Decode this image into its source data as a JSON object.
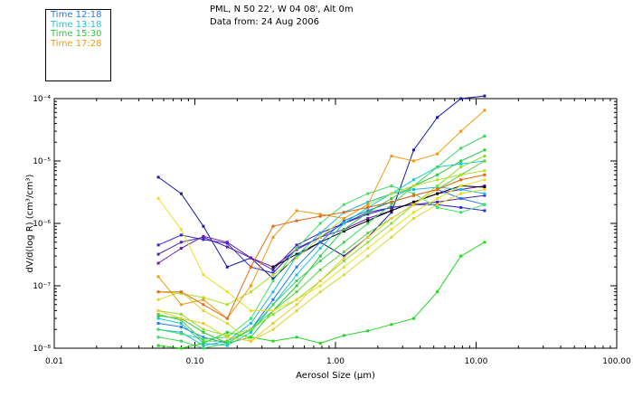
{
  "header": {
    "line1": "PML, N 50 22', W 04 08', Alt 0m",
    "line2": "Data from: 24 Aug 2006"
  },
  "legend": [
    {
      "label": "Time 12:18",
      "color": "#1e7bf0"
    },
    {
      "label": "Time 13:18",
      "color": "#18c8d8"
    },
    {
      "label": "Time 15:30",
      "color": "#2ec83a"
    },
    {
      "label": "Time 17:28",
      "color": "#f09a10"
    }
  ],
  "chart_data": {
    "type": "line",
    "xlabel": "Aerosol Size (μm)",
    "ylabel": "dV/d(log R) (cm³/cm³)",
    "x_scale": "log",
    "y_scale": "log",
    "xlim": [
      0.01,
      100
    ],
    "ylim": [
      1e-08,
      0.0001
    ],
    "x_ticks": [
      {
        "value": 0.01,
        "label": "0.01"
      },
      {
        "value": 0.1,
        "label": "0.10"
      },
      {
        "value": 1,
        "label": "1.00"
      },
      {
        "value": 10,
        "label": "10.00"
      },
      {
        "value": 100,
        "label": "100.00"
      }
    ],
    "y_ticks": [
      {
        "value": 1e-08,
        "label": "10⁻⁸"
      },
      {
        "value": 1e-07,
        "label": "10⁻⁷"
      },
      {
        "value": 1e-06,
        "label": "10⁻⁶"
      },
      {
        "value": 1e-05,
        "label": "10⁻⁵"
      },
      {
        "value": 0.0001,
        "label": "10⁻⁴"
      }
    ],
    "x": [
      0.055,
      0.08,
      0.115,
      0.17,
      0.25,
      0.36,
      0.53,
      0.78,
      1.15,
      1.7,
      2.5,
      3.6,
      5.3,
      7.8,
      11.5
    ],
    "series": [
      {
        "color": "#1a1aa0",
        "values": [
          5.5e-06,
          3e-06,
          9e-07,
          2e-07,
          2.8e-07,
          1.3e-07,
          3e-07,
          5e-07,
          3e-07,
          6e-07,
          1.5e-06,
          1.5e-05,
          5e-05,
          0.0001,
          0.00011
        ]
      },
      {
        "color": "#2a2ad0",
        "values": [
          4.5e-07,
          6.5e-07,
          5.5e-07,
          4.8e-07,
          2e-07,
          1.6e-07,
          4e-07,
          6e-07,
          1e-06,
          1.4e-06,
          1.8e-06,
          2e-06,
          2e-06,
          1.8e-06,
          1.6e-06
        ]
      },
      {
        "color": "#4a20a8",
        "values": [
          3.2e-07,
          5e-07,
          6e-07,
          4.2e-07,
          2.8e-07,
          1.8e-07,
          4.5e-07,
          7e-07,
          1e-06,
          1.5e-06,
          1.8e-06,
          2e-06,
          2.2e-06,
          2.5e-06,
          2.8e-06
        ]
      },
      {
        "color": "#6a18b0",
        "values": [
          2.3e-07,
          4e-07,
          6.2e-07,
          5e-07,
          2.8e-07,
          2e-07,
          3.8e-07,
          6e-07,
          8e-07,
          1.2e-06,
          1.6e-06,
          2.2e-06,
          3e-06,
          3.5e-06,
          4e-06
        ]
      },
      {
        "color": "#000000",
        "values": [
          null,
          null,
          null,
          null,
          null,
          2e-07,
          3.2e-07,
          5e-07,
          7.5e-07,
          1.1e-06,
          1.6e-06,
          2.2e-06,
          3e-06,
          4e-06,
          3.8e-06
        ]
      },
      {
        "color": "#1e7bf0",
        "values": [
          2.5e-08,
          2.2e-08,
          1.5e-08,
          1.2e-08,
          2e-08,
          6e-08,
          2e-07,
          5e-07,
          1.1e-06,
          1.6e-06,
          2.2e-06,
          2.8e-06,
          3.5e-06,
          2.5e-06,
          2e-06
        ]
      },
      {
        "color": "#18c8d8",
        "values": [
          3e-08,
          2.5e-08,
          1.2e-08,
          1.1e-08,
          1.8e-08,
          5e-08,
          1.5e-07,
          4e-07,
          1e-06,
          1.8e-06,
          3e-06,
          5e-06,
          8e-06,
          9e-06,
          1e-05
        ]
      },
      {
        "color": "#20b8e0",
        "values": [
          2e-08,
          1.8e-08,
          1.1e-08,
          1.3e-08,
          2.5e-08,
          8e-08,
          3e-07,
          7e-07,
          1.5e-06,
          2.2e-06,
          3e-06,
          3.5e-06,
          3.8e-06,
          3.5e-06,
          3e-06
        ]
      },
      {
        "color": "#2ec83a",
        "values": [
          3.3e-08,
          3e-08,
          1.8e-08,
          1.2e-08,
          1.5e-08,
          4e-08,
          1e-07,
          3e-07,
          8e-07,
          1.5e-06,
          2.5e-06,
          4e-06,
          6e-06,
          1e-05,
          1.5e-05
        ]
      },
      {
        "color": "#38d858",
        "values": [
          1.5e-08,
          1.3e-08,
          1e-08,
          1.2e-08,
          2e-08,
          5e-08,
          1.2e-07,
          2.5e-07,
          5e-07,
          1e-06,
          2e-06,
          4e-06,
          8e-06,
          1.6e-05,
          2.5e-05
        ]
      },
      {
        "color": "#20d820",
        "values": [
          1.1e-08,
          1e-08,
          1.2e-08,
          1.8e-08,
          1.5e-08,
          1.3e-08,
          1.5e-08,
          1.2e-08,
          1.6e-08,
          1.9e-08,
          2.4e-08,
          3e-08,
          8e-08,
          3e-07,
          5e-07
        ]
      },
      {
        "color": "#58d040",
        "values": [
          3.5e-08,
          2.8e-08,
          1.3e-08,
          1.3e-08,
          2e-08,
          4e-08,
          8e-08,
          1.8e-07,
          3.5e-07,
          7e-07,
          1.2e-06,
          2e-06,
          3.5e-06,
          6e-06,
          1e-05
        ]
      },
      {
        "color": "#40e060",
        "values": [
          2e-08,
          1.7e-08,
          1.4e-08,
          1.5e-08,
          3e-08,
          1.2e-07,
          4e-07,
          1e-06,
          2e-06,
          3e-06,
          4e-06,
          3e-06,
          1.8e-06,
          1.5e-06,
          2e-06
        ]
      },
      {
        "color": "#88e030",
        "values": [
          4e-08,
          3.5e-08,
          2e-08,
          1.6e-08,
          2e-08,
          3.5e-08,
          6e-08,
          1.2e-07,
          2.5e-07,
          5e-07,
          1e-06,
          2e-06,
          4e-06,
          8e-06,
          1.2e-05
        ]
      },
      {
        "color": "#b0e028",
        "values": [
          8e-08,
          7.5e-08,
          6.5e-08,
          5e-08,
          8e-08,
          1.5e-07,
          2.8e-07,
          6e-07,
          1.2e-06,
          2e-06,
          3e-06,
          4e-06,
          5e-06,
          6e-06,
          7e-06
        ]
      },
      {
        "color": "#e8e020",
        "values": [
          2.5e-06,
          8e-07,
          1.5e-07,
          8e-08,
          4e-08,
          4e-08,
          6e-08,
          1e-07,
          2e-07,
          4e-07,
          8e-07,
          1.5e-06,
          2.5e-06,
          4e-06,
          5e-06
        ]
      },
      {
        "color": "#d8d830",
        "values": [
          6e-08,
          8e-08,
          4e-08,
          2.5e-08,
          1.3e-08,
          2e-08,
          4e-08,
          8e-08,
          1.5e-07,
          3e-07,
          6e-07,
          1.2e-06,
          2e-06,
          3e-06,
          3.5e-06
        ]
      },
      {
        "color": "#f0c828",
        "values": [
          4e-08,
          3e-08,
          2.5e-08,
          1.5e-08,
          1.3e-08,
          2.5e-08,
          5e-08,
          1.2e-07,
          2.8e-07,
          6e-07,
          1.2e-06,
          2e-06,
          3.5e-06,
          5e-06,
          6e-06
        ]
      },
      {
        "color": "#f09a10",
        "values": [
          1.4e-07,
          5e-08,
          6e-08,
          3e-08,
          1e-07,
          6e-07,
          1.6e-06,
          1.4e-06,
          1.2e-06,
          2e-06,
          1.2e-05,
          1e-05,
          1.3e-05,
          3e-05,
          6.5e-05
        ]
      },
      {
        "color": "#e86818",
        "values": [
          8e-08,
          8e-08,
          5e-08,
          3e-08,
          2e-07,
          9e-07,
          1.1e-06,
          1.3e-06,
          1.5e-06,
          1.8e-06,
          2.2e-06,
          2.8e-06,
          3.5e-06,
          5e-06,
          6e-06
        ]
      }
    ]
  }
}
